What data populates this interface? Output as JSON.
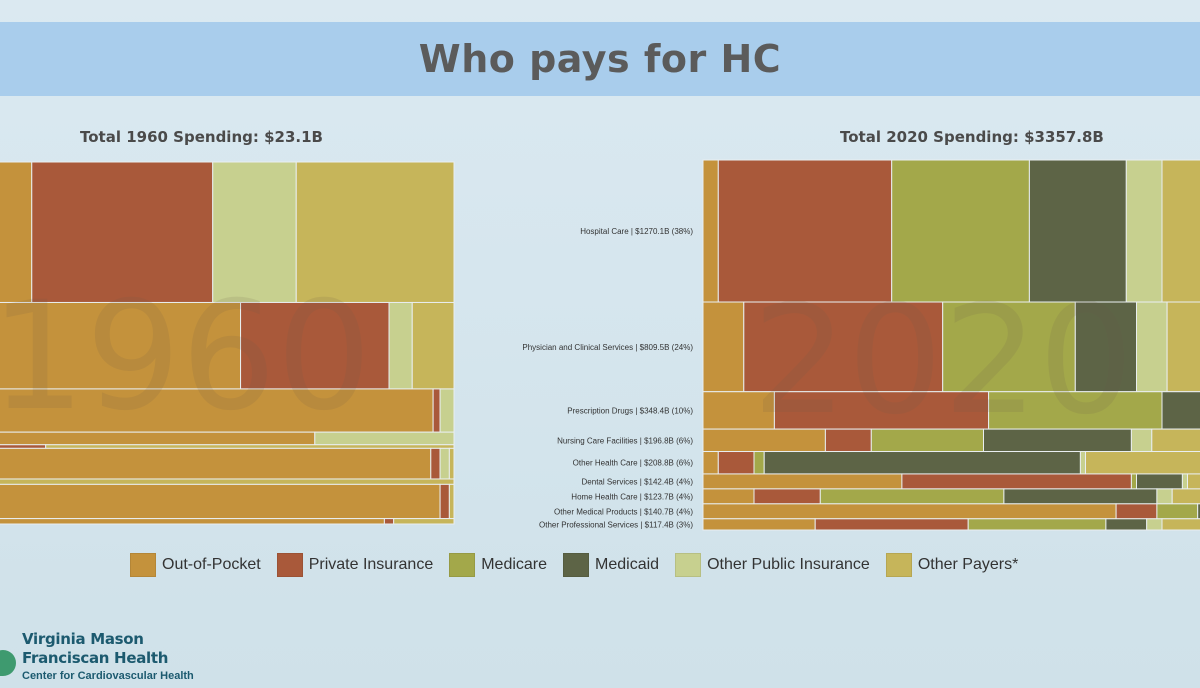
{
  "title": "Who pays for HC",
  "panels": {
    "left_title": "Total 1960 Spending: $23.1B",
    "right_title": "Total 2020 Spending: $3357.8B",
    "left_watermark": "1960",
    "right_watermark": "2020"
  },
  "colors": {
    "Out-of-Pocket": "#c4923c",
    "Private Insurance": "#a9593a",
    "Medicare": "#a3a84a",
    "Medicaid": "#5d6446",
    "Other Public Insurance": "#c7d08f",
    "Other Payers*": "#c6b55a"
  },
  "legend": [
    "Out-of-Pocket",
    "Private Insurance",
    "Medicare",
    "Medicaid",
    "Other Public Insurance",
    "Other Payers*"
  ],
  "category_labels": [
    "Hospital Care | $1270.1B (38%)",
    "Physician and Clinical Services | $809.5B (24%)",
    "Prescription Drugs | $348.4B (10%)",
    "Nursing Care Facilities | $196.8B (6%)",
    "Other Health Care | $208.8B (6%)",
    "Dental Services | $142.4B (4%)",
    "Home Health Care | $123.7B (4%)",
    "Other Medical Products | $140.7B (4%)",
    "Other Professional Services | $117.4B (3%)"
  ],
  "logo": {
    "name_line1": "Virginia Mason",
    "name_line2": "Franciscan Health",
    "subtitle": "Center for Cardiovascular Health"
  },
  "chart_data": [
    {
      "type": "marimekko",
      "title": "Total 1960 Spending: $23.1B",
      "series_names": [
        "Out-of-Pocket",
        "Private Insurance",
        "Medicare",
        "Medicaid",
        "Other Public Insurance",
        "Other Payers*"
      ],
      "rows": [
        {
          "category": "Hospital Care",
          "share_of_total": 0.39,
          "payer_shares": [
            0.09,
            0.39,
            0.0,
            0.0,
            0.18,
            0.34
          ]
        },
        {
          "category": "Physician and Clinical Services",
          "share_of_total": 0.24,
          "payer_shares": [
            0.54,
            0.32,
            0.0,
            0.0,
            0.05,
            0.09
          ]
        },
        {
          "category": "Prescription Drugs",
          "share_of_total": 0.12,
          "payer_shares": [
            0.955,
            0.015,
            0.0,
            0.0,
            0.03,
            0.0
          ]
        },
        {
          "category": "Nursing Care Facilities",
          "share_of_total": 0.035,
          "payer_shares": [
            0.7,
            0.0,
            0.0,
            0.0,
            0.3,
            0.0
          ]
        },
        {
          "category": "Other Health Care",
          "share_of_total": 0.01,
          "payer_shares": [
            0.0,
            0.12,
            0.0,
            0.0,
            0.0,
            0.88
          ]
        },
        {
          "category": "Dental Services",
          "share_of_total": 0.085,
          "payer_shares": [
            0.95,
            0.02,
            0.0,
            0.0,
            0.02,
            0.01
          ]
        },
        {
          "category": "Home Health Care",
          "share_of_total": 0.015,
          "payer_shares": [
            0.0,
            0.0,
            0.0,
            0.0,
            0.0,
            1.0
          ]
        },
        {
          "category": "Other Medical Products",
          "share_of_total": 0.095,
          "payer_shares": [
            0.97,
            0.02,
            0.0,
            0.0,
            0.0,
            0.01
          ]
        },
        {
          "category": "Other Professional Services",
          "share_of_total": 0.015,
          "payer_shares": [
            0.85,
            0.02,
            0.0,
            0.0,
            0.0,
            0.13
          ]
        }
      ]
    },
    {
      "type": "marimekko",
      "title": "Total 2020 Spending: $3357.8B",
      "series_names": [
        "Out-of-Pocket",
        "Private Insurance",
        "Medicare",
        "Medicaid",
        "Other Public Insurance",
        "Other Payers*"
      ],
      "rows": [
        {
          "category": "Hospital Care",
          "value_billions": 1270.1,
          "share_of_total": 0.38,
          "payer_shares": [
            0.03,
            0.34,
            0.27,
            0.19,
            0.07,
            0.1
          ]
        },
        {
          "category": "Physician and Clinical Services",
          "value_billions": 809.5,
          "share_of_total": 0.24,
          "payer_shares": [
            0.08,
            0.39,
            0.26,
            0.12,
            0.06,
            0.09
          ]
        },
        {
          "category": "Prescription Drugs",
          "value_billions": 348.4,
          "share_of_total": 0.1,
          "payer_shares": [
            0.14,
            0.42,
            0.34,
            0.1,
            0.0,
            0.0
          ]
        },
        {
          "category": "Nursing Care Facilities",
          "value_billions": 196.8,
          "share_of_total": 0.06,
          "payer_shares": [
            0.24,
            0.09,
            0.22,
            0.29,
            0.04,
            0.12
          ]
        },
        {
          "category": "Other Health Care",
          "value_billions": 208.8,
          "share_of_total": 0.06,
          "payer_shares": [
            0.03,
            0.07,
            0.02,
            0.62,
            0.01,
            0.25
          ]
        },
        {
          "category": "Dental Services",
          "value_billions": 142.4,
          "share_of_total": 0.04,
          "payer_shares": [
            0.39,
            0.45,
            0.01,
            0.09,
            0.01,
            0.05
          ]
        },
        {
          "category": "Home Health Care",
          "value_billions": 123.7,
          "share_of_total": 0.04,
          "payer_shares": [
            0.1,
            0.13,
            0.36,
            0.3,
            0.03,
            0.08
          ]
        },
        {
          "category": "Other Medical Products",
          "value_billions": 140.7,
          "share_of_total": 0.04,
          "payer_shares": [
            0.81,
            0.08,
            0.08,
            0.02,
            0.0,
            0.01
          ]
        },
        {
          "category": "Other Professional Services",
          "value_billions": 117.4,
          "share_of_total": 0.03,
          "payer_shares": [
            0.22,
            0.3,
            0.27,
            0.08,
            0.03,
            0.1
          ]
        }
      ]
    }
  ]
}
